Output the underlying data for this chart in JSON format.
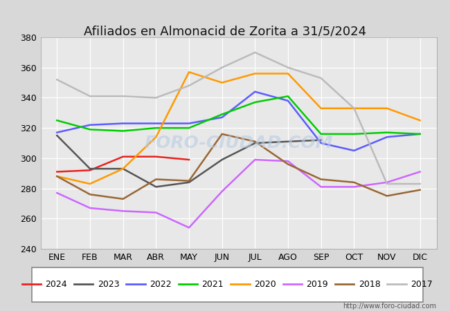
{
  "title": "Afiliados en Almonacid de Zorita a 31/5/2024",
  "background_color": "#d8d8d8",
  "plot_bg": "#e8e8e8",
  "header_strip_color": "#5b8dd9",
  "months": [
    "ENE",
    "FEB",
    "MAR",
    "ABR",
    "MAY",
    "JUN",
    "JUL",
    "AGO",
    "SEP",
    "OCT",
    "NOV",
    "DIC"
  ],
  "ylim": [
    240,
    380
  ],
  "yticks": [
    240,
    260,
    280,
    300,
    320,
    340,
    360,
    380
  ],
  "series": {
    "2024": {
      "color": "#e8221e",
      "data": [
        291,
        292,
        301,
        301,
        299,
        null,
        null,
        null,
        null,
        null,
        null,
        null
      ]
    },
    "2023": {
      "color": "#555555",
      "data": [
        315,
        293,
        293,
        281,
        284,
        299,
        310,
        311,
        312,
        null,
        null,
        null
      ]
    },
    "2022": {
      "color": "#5b5bff",
      "data": [
        317,
        322,
        323,
        323,
        323,
        327,
        344,
        338,
        310,
        305,
        314,
        316
      ]
    },
    "2021": {
      "color": "#00cc00",
      "data": [
        325,
        319,
        318,
        320,
        320,
        329,
        337,
        341,
        316,
        316,
        317,
        316
      ]
    },
    "2020": {
      "color": "#ff9900",
      "data": [
        288,
        283,
        293,
        314,
        357,
        350,
        356,
        356,
        333,
        333,
        333,
        325
      ]
    },
    "2019": {
      "color": "#cc66ff",
      "data": [
        277,
        267,
        265,
        264,
        254,
        278,
        299,
        298,
        281,
        281,
        284,
        291
      ]
    },
    "2018": {
      "color": "#996633",
      "data": [
        288,
        276,
        273,
        286,
        285,
        316,
        311,
        296,
        286,
        284,
        275,
        279
      ]
    },
    "2017": {
      "color": "#bbbbbb",
      "data": [
        352,
        341,
        341,
        340,
        348,
        360,
        370,
        360,
        353,
        333,
        283,
        283
      ]
    }
  },
  "legend_order": [
    "2024",
    "2023",
    "2022",
    "2021",
    "2020",
    "2019",
    "2018",
    "2017"
  ],
  "watermark": "FORO-CIUDAD.COM",
  "url": "http://www.foro-ciudad.com"
}
